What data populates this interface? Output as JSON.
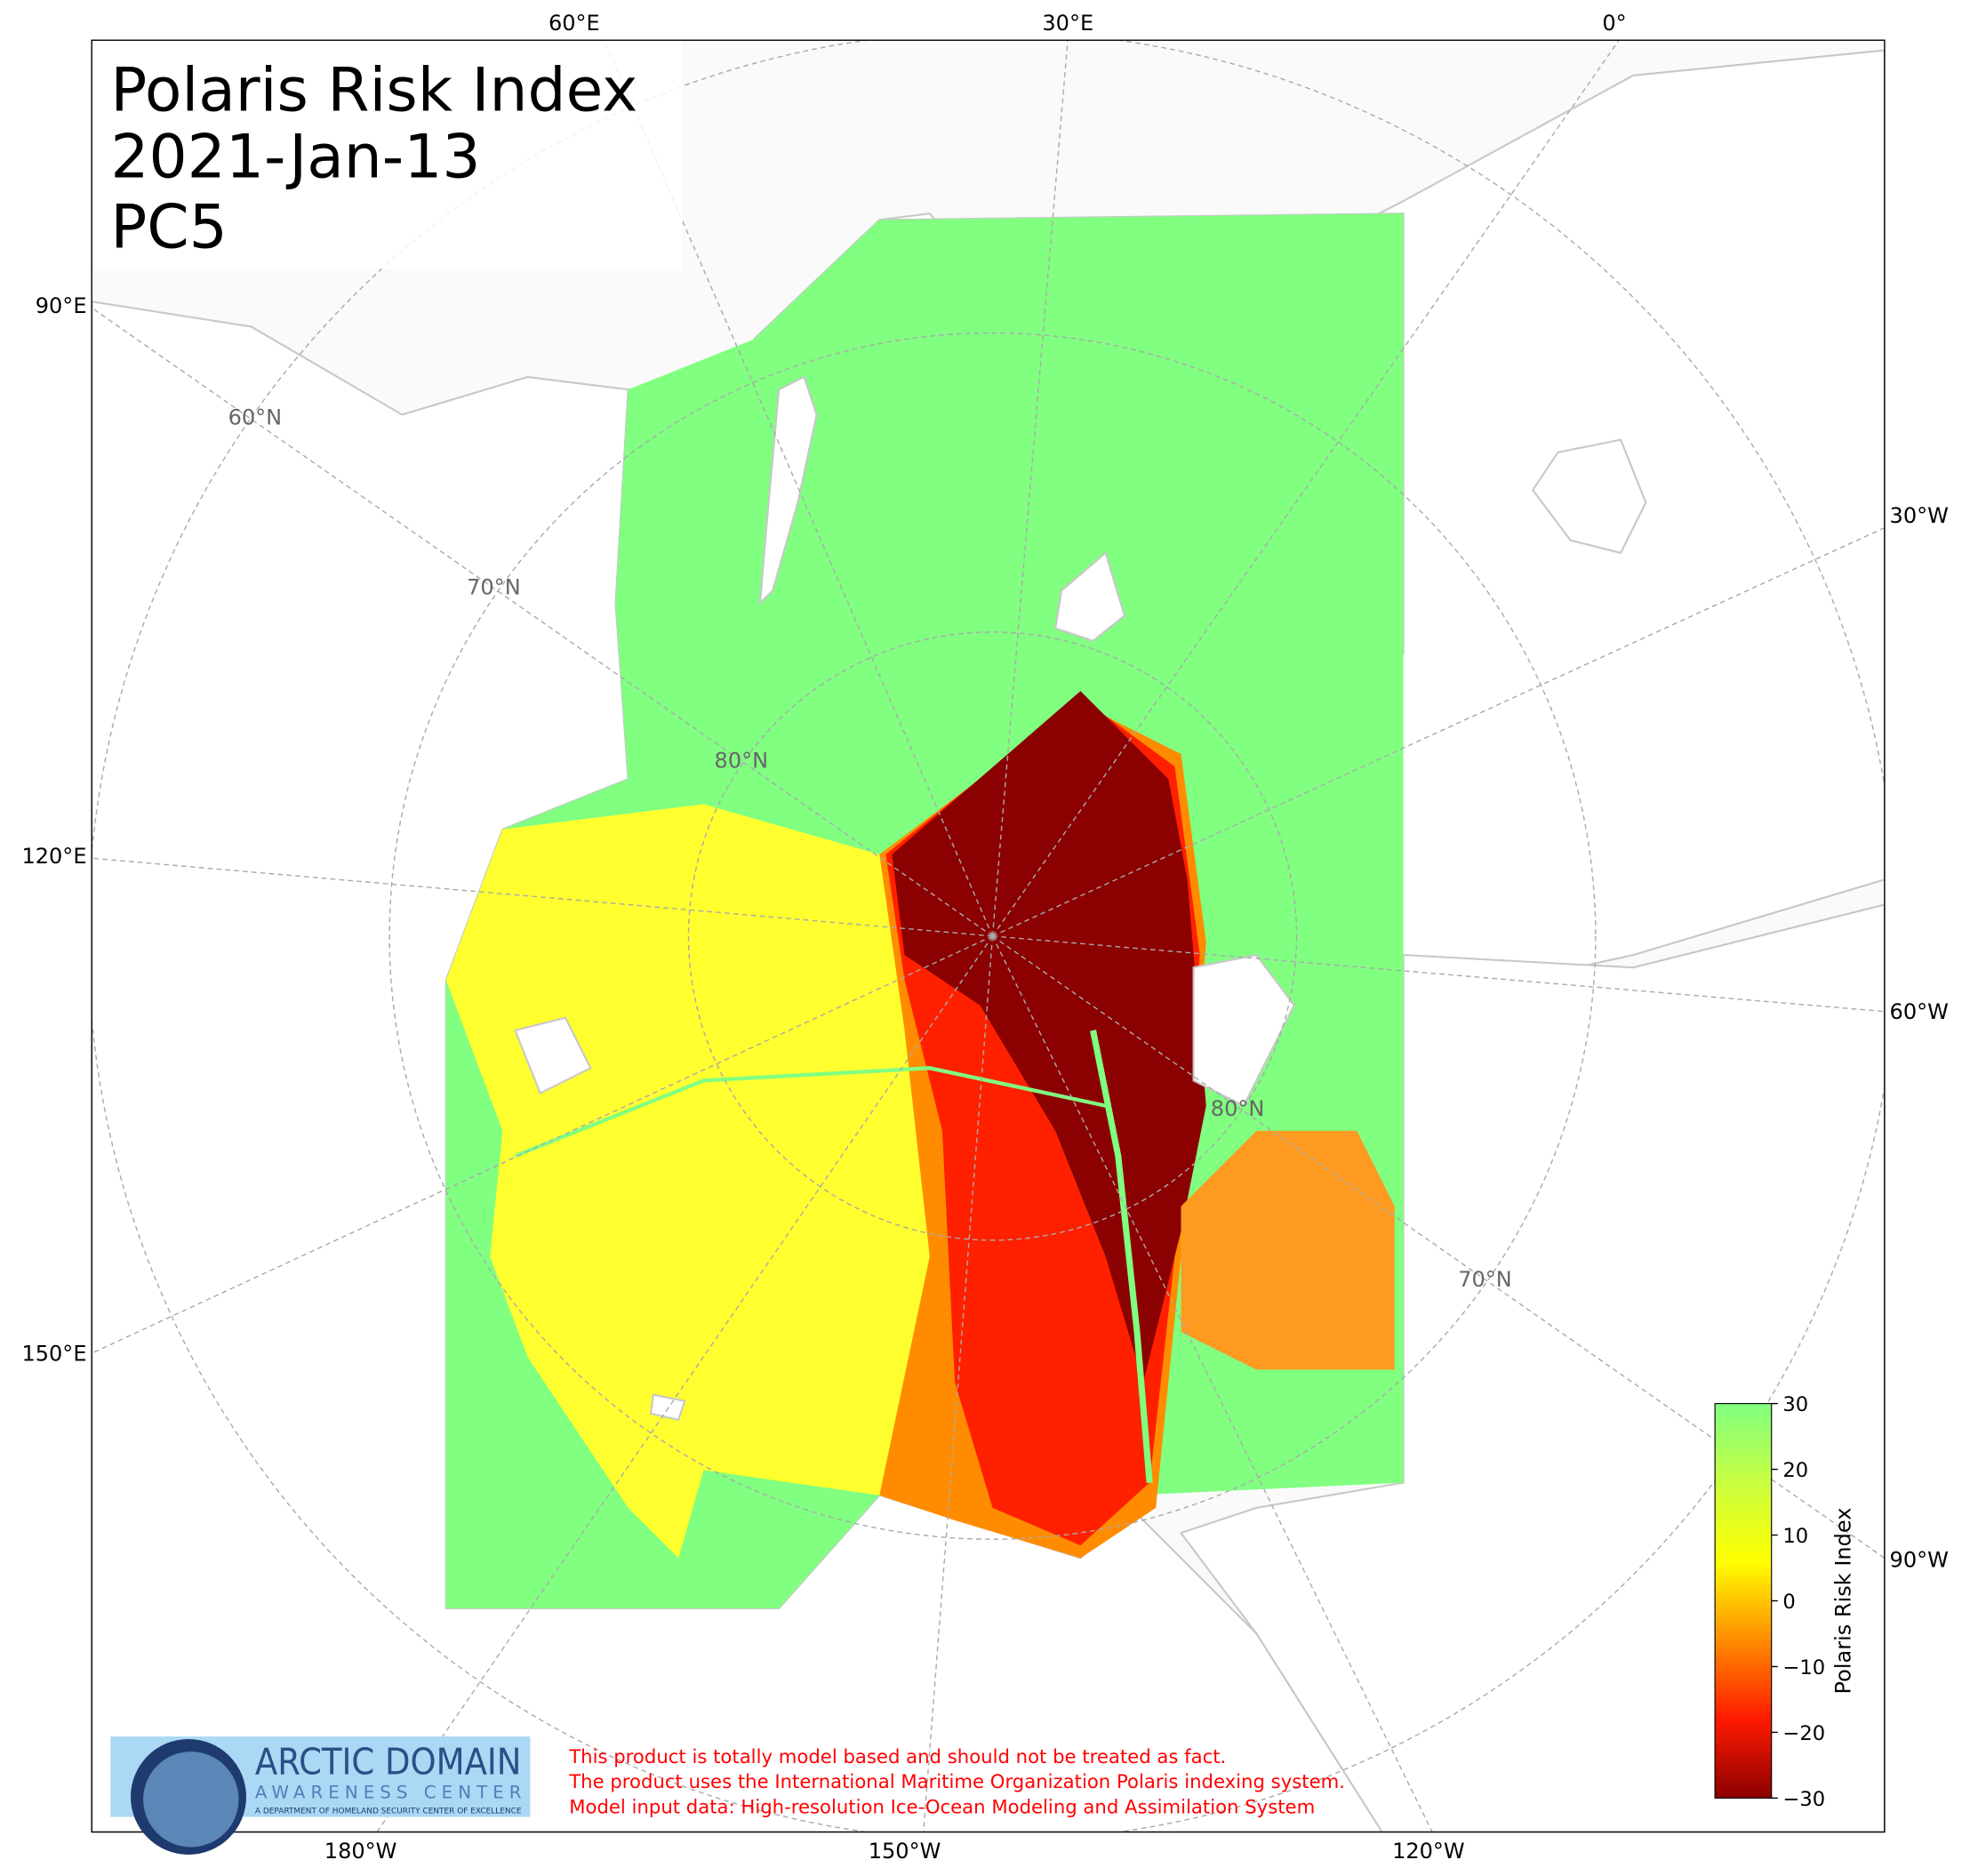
{
  "title_lines": [
    "Polaris Risk Index",
    "2021-Jan-13",
    "PC5"
  ],
  "longitude_labels": {
    "top": [
      "60°E",
      "30°E",
      "0°"
    ],
    "bottom": [
      "180°W",
      "150°W",
      "120°W"
    ],
    "left": [
      "90°E",
      "120°E",
      "150°E"
    ],
    "right": [
      "30°W",
      "60°W",
      "90°W"
    ]
  },
  "latitude_labels": [
    "60°N",
    "70°N",
    "80°N",
    "80°N",
    "70°N"
  ],
  "colorbar": {
    "label": "Polaris Risk Index",
    "lim": [
      -30,
      30
    ],
    "ticks": [
      30,
      20,
      10,
      0,
      {
        "value": -10,
        "label": "−10"
      },
      {
        "value": -20,
        "label": "−20"
      },
      {
        "value": -30,
        "label": "−30"
      }
    ],
    "colors": [
      "#8b0000",
      "#ff1a00",
      "#ff8c00",
      "#ffff00",
      "#c8ff40",
      "#80ff80"
    ]
  },
  "logo": {
    "title": "ARCTIC DOMAIN",
    "subtitle": "AWARENESS CENTER",
    "tagline": "A DEPARTMENT OF HOMELAND SECURITY CENTER OF EXCELLENCE"
  },
  "notes": [
    "This product is totally model based and should not be treated as fact.",
    "The product uses the International Maritime Organization Polaris indexing system.",
    "Model input data: High-resolution Ice-Ocean Modeling and Assimilation System"
  ]
}
